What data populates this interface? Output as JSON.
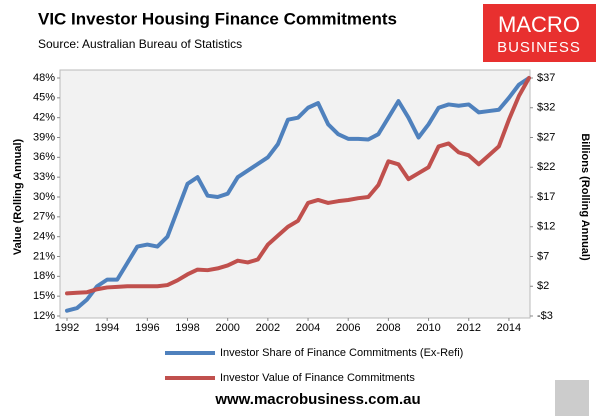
{
  "chart_data": {
    "type": "line",
    "title": "VIC Investor Housing Finance Commitments",
    "subtitle": "Source: Australian Bureau of Statistics",
    "logo": {
      "line1": "MACRO",
      "line2": "BUSINESS"
    },
    "footer": "www.macrobusiness.com.au",
    "ylabel": "Value (Rolling Annual)",
    "y2label": "Billions (Rolling Annual)",
    "x": [
      1992,
      1992.5,
      1993,
      1993.5,
      1994,
      1994.5,
      1995,
      1995.5,
      1996,
      1996.5,
      1997,
      1997.5,
      1998,
      1998.5,
      1999,
      1999.5,
      2000,
      2000.5,
      2001,
      2001.5,
      2002,
      2002.5,
      2003,
      2003.5,
      2004,
      2004.5,
      2005,
      2005.5,
      2006,
      2006.5,
      2007,
      2007.5,
      2008,
      2008.5,
      2009,
      2009.5,
      2010,
      2010.5,
      2011,
      2011.5,
      2012,
      2012.5,
      2013,
      2013.5,
      2014,
      2014.5,
      2015
    ],
    "series": [
      {
        "name": "Investor Share of Finance Commitments (Ex-Refi)",
        "color": "#4f81bd",
        "axis": "y",
        "values": [
          12.8,
          13.2,
          14.5,
          16.5,
          17.5,
          17.5,
          20,
          22.5,
          22.8,
          22.5,
          24,
          28,
          32,
          33,
          30.2,
          30,
          30.5,
          33,
          34,
          35,
          36,
          38,
          41.7,
          42,
          43.5,
          44.2,
          41,
          39.5,
          38.8,
          38.8,
          38.7,
          39.5,
          42,
          44.5,
          42,
          39,
          41,
          43.5,
          44,
          43.8,
          44,
          42.8,
          43,
          43.2,
          45,
          47,
          48
        ]
      },
      {
        "name": "Investor Value of Finance Commitments",
        "color": "#c0504d",
        "axis": "y2",
        "values": [
          0.8,
          0.9,
          1.0,
          1.5,
          1.8,
          1.9,
          2.0,
          2.0,
          2.0,
          2.0,
          2.2,
          3.0,
          4.0,
          4.8,
          4.7,
          5.0,
          5.5,
          6.3,
          6.0,
          6.5,
          9,
          10.5,
          12,
          13,
          16,
          16.5,
          16,
          16.3,
          16.5,
          16.8,
          17,
          19,
          23,
          22.5,
          20,
          21,
          22,
          25.5,
          26,
          24.5,
          24,
          22.5,
          24,
          25.5,
          30,
          34,
          37
        ]
      }
    ],
    "xlim": [
      1992,
      2015
    ],
    "xticks": [
      1992,
      1994,
      1996,
      1998,
      2000,
      2002,
      2004,
      2006,
      2008,
      2010,
      2012,
      2014
    ],
    "ylim": [
      12,
      48
    ],
    "yticks": [
      {
        "value": 12,
        "label": "12%"
      },
      {
        "value": 15,
        "label": "15%"
      },
      {
        "value": 18,
        "label": "18%"
      },
      {
        "value": 21,
        "label": "21%"
      },
      {
        "value": 24,
        "label": "24%"
      },
      {
        "value": 27,
        "label": "27%"
      },
      {
        "value": 30,
        "label": "30%"
      },
      {
        "value": 33,
        "label": "33%"
      },
      {
        "value": 36,
        "label": "36%"
      },
      {
        "value": 39,
        "label": "39%"
      },
      {
        "value": 42,
        "label": "42%"
      },
      {
        "value": 45,
        "label": "45%"
      },
      {
        "value": 48,
        "label": "48%"
      }
    ],
    "y2lim": [
      -3,
      37
    ],
    "y2ticks": [
      {
        "value": -3,
        "label": "-$3"
      },
      {
        "value": 2,
        "label": "$2"
      },
      {
        "value": 7,
        "label": "$7"
      },
      {
        "value": 12,
        "label": "$12"
      },
      {
        "value": 17,
        "label": "$17"
      },
      {
        "value": 22,
        "label": "$22"
      },
      {
        "value": 27,
        "label": "$27"
      },
      {
        "value": 32,
        "label": "$32"
      },
      {
        "value": 37,
        "label": "$37"
      }
    ],
    "grid": false
  }
}
